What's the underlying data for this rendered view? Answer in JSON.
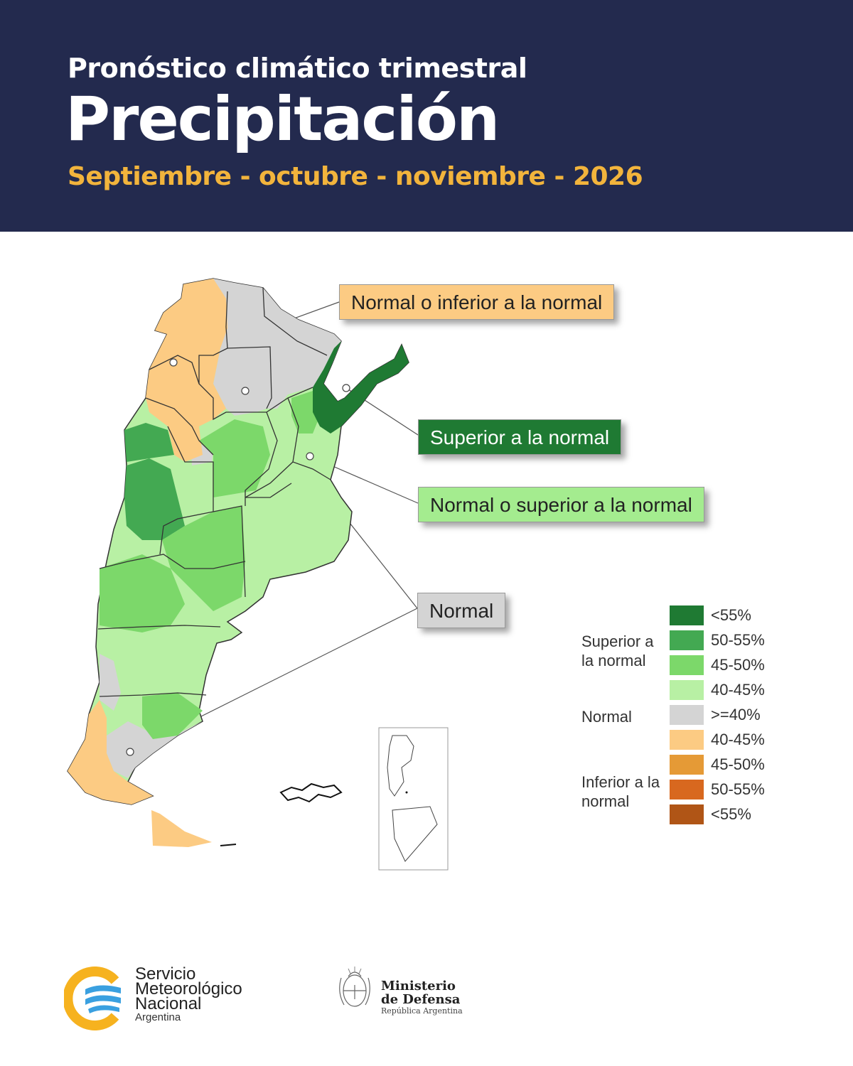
{
  "header": {
    "supertitle": "Pronóstico climático trimestral",
    "title": "Precipitación",
    "period": "Septiembre - octubre - noviembre - 2026"
  },
  "colors": {
    "header_bg": "#232a4e",
    "period_text": "#f2b43c",
    "above_strong": "#1f7a33",
    "above_medium": "#43a952",
    "above_light": "#7cd86a",
    "above_lighter": "#b8f0a4",
    "normal": "#d4d4d4",
    "below_light": "#fccb83",
    "below_medium": "#e59a36",
    "below_strong": "#d8681f",
    "below_stronger": "#b05516"
  },
  "callouts": {
    "below_normal": "Normal o inferior a la normal",
    "above_normal": "Superior a la normal",
    "normal_or_above": "Normal o superior a la normal",
    "normal": "Normal"
  },
  "legend": {
    "groups": {
      "above": "Superior a la normal",
      "normal": "Normal",
      "below": "Inferior a la normal"
    },
    "items": [
      {
        "label": "<55%",
        "color": "#1f7a33"
      },
      {
        "label": "50-55%",
        "color": "#43a952"
      },
      {
        "label": "45-50%",
        "color": "#7cd86a"
      },
      {
        "label": "40-45%",
        "color": "#b8f0a4"
      },
      {
        "label": ">=40%",
        "color": "#d4d4d4"
      },
      {
        "label": "40-45%",
        "color": "#fccb83"
      },
      {
        "label": "45-50%",
        "color": "#e59a36"
      },
      {
        "label": "50-55%",
        "color": "#d8681f"
      },
      {
        "label": "<55%",
        "color": "#b05516"
      }
    ]
  },
  "logos": {
    "smn": {
      "line1": "Servicio",
      "line2": "Meteorológico",
      "line3": "Nacional",
      "country": "Argentina"
    },
    "ministerio": {
      "line1": "Ministerio",
      "line2": "de Defensa",
      "country": "República Argentina"
    }
  }
}
